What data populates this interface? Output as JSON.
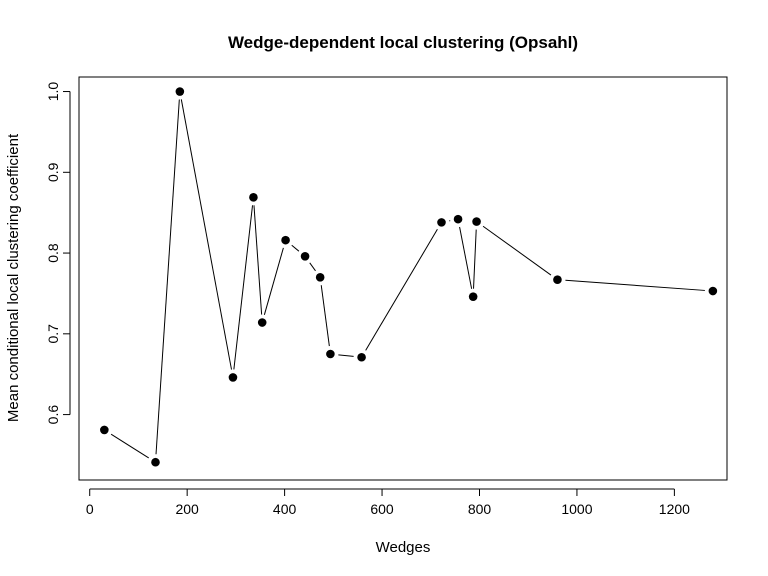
{
  "chart_data": {
    "type": "line",
    "title": "Wedge-dependent local clustering (Opsahl)",
    "xlabel": "Wedges",
    "ylabel": "Mean conditional local clustering coefficient",
    "xlim": [
      -22,
      1308
    ],
    "ylim": [
      0.519,
      1.018
    ],
    "xticks": [
      0,
      200,
      400,
      600,
      800,
      1000,
      1200
    ],
    "xtick_labels": [
      "0",
      "200",
      "400",
      "600",
      "800",
      "1000",
      "1200"
    ],
    "yticks": [
      0.6,
      0.7,
      0.8,
      0.9,
      1.0
    ],
    "ytick_labels": [
      "0.6",
      "0.7",
      "0.8",
      "0.9",
      "1.0"
    ],
    "grid": false,
    "line_style": "points-and-lines",
    "colors": {
      "line": "#000000",
      "point": "#000000",
      "background": "#ffffff"
    },
    "series": [
      {
        "x": [
          30,
          135,
          185,
          294,
          336,
          354,
          402,
          442,
          473,
          494,
          558,
          722,
          756,
          787,
          794,
          960,
          1279
        ],
        "y": [
          0.581,
          0.541,
          1.0,
          0.646,
          0.869,
          0.714,
          0.816,
          0.796,
          0.77,
          0.675,
          0.671,
          0.838,
          0.842,
          0.746,
          0.839,
          0.767,
          0.753
        ]
      }
    ]
  }
}
